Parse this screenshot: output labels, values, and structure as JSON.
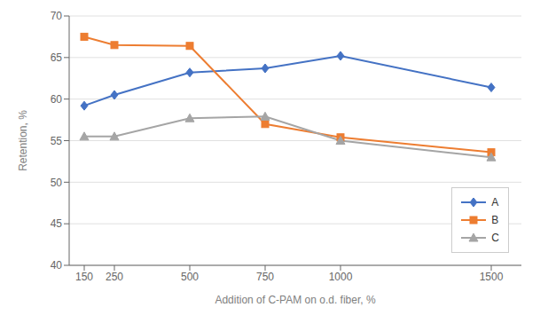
{
  "chart_data": {
    "type": "line",
    "xlabel": "Addition of C-PAM on o.d. fiber, %",
    "ylabel": "Retention, %",
    "x": [
      150,
      250,
      500,
      750,
      1000,
      1500
    ],
    "series": [
      {
        "name": "A",
        "color": "#4472C4",
        "marker": "diamond",
        "values": [
          59.2,
          60.5,
          63.2,
          63.7,
          65.2,
          61.4
        ]
      },
      {
        "name": "B",
        "color": "#ED7D31",
        "marker": "square",
        "values": [
          67.5,
          66.5,
          66.4,
          57.0,
          55.4,
          53.6
        ]
      },
      {
        "name": "C",
        "color": "#A5A5A5",
        "marker": "triangle",
        "values": [
          55.5,
          55.5,
          57.7,
          57.9,
          55.0,
          53.0
        ]
      }
    ],
    "xlim": [
      100,
      1600
    ],
    "xticks": [
      150,
      250,
      500,
      750,
      1000,
      1500
    ],
    "ylim": [
      40,
      70
    ],
    "yticks": [
      40,
      45,
      50,
      55,
      60,
      65,
      70
    ],
    "grid": true,
    "legend": "lower right"
  }
}
